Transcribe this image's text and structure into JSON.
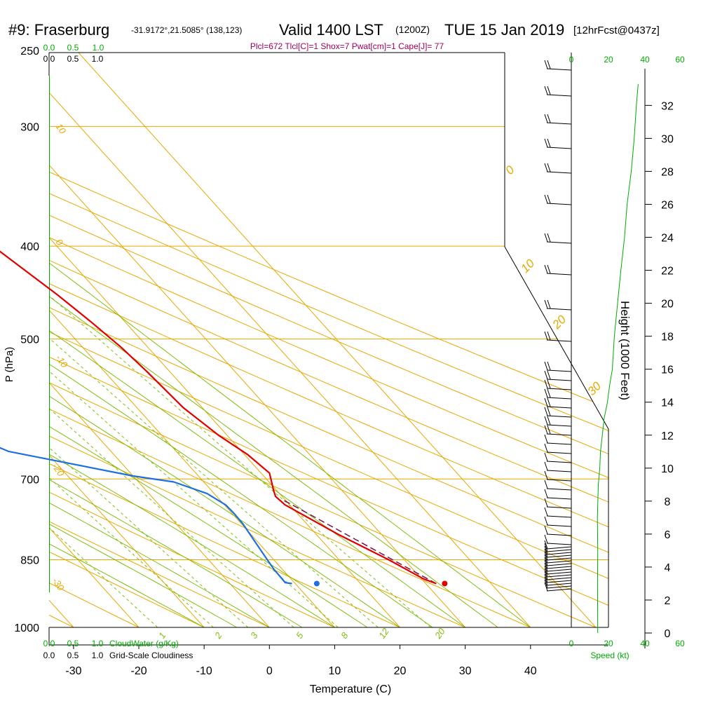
{
  "header": {
    "station": "#9: Fraserburg",
    "coords": "-31.9172°,21.5085° (138,123)",
    "valid": "Valid 1400 LST",
    "zulu": "(1200Z)",
    "date": "TUE 15 Jan 2019",
    "forecast": "[12hrFcst@0437z]",
    "indices": "Plcl=672 Tlcl[C]=1 Shox=7 Pwat[cm]=1 Cape[J]= 77"
  },
  "colors": {
    "isotherm": "#e8a800",
    "dry_adiabat": "#e8a800",
    "moist_adiabat": "#7fbf10",
    "mixing_ratio": "#7fbf10",
    "temperature": "#e00000",
    "dewpoint": "#1f6fe0",
    "parcel": "#7a1050",
    "indices": "#a0005a",
    "green_text": "#00aa00"
  },
  "left_scales": {
    "cloudwater_ticks": [
      "0.0",
      "0.5",
      "1.0"
    ],
    "cloudiness_ticks": [
      "0.0",
      "0.5",
      "1.0"
    ],
    "cloudwater_label": "CloudWater (g/Kg)",
    "cloudiness_label": "Grid-Scale Cloudiness"
  },
  "isotherm_labels": [
    "10",
    "0",
    "-10",
    "-20",
    "-30"
  ],
  "adiabat_labels": [
    "0",
    "10",
    "20",
    "30"
  ],
  "mixing_ratio_labels": [
    "1",
    "2",
    "3",
    "5",
    "8",
    "12",
    "20"
  ],
  "speed_axis": {
    "ticks": [
      "0",
      "20",
      "40",
      "60"
    ],
    "label": "Speed (kt)"
  },
  "chart_data": {
    "type": "line",
    "title": "#9: Fraserburg",
    "xlabel": "Temperature (C)",
    "ylabel": "P (hPa)",
    "y2label": "Height (1000 Feet)",
    "xlim": [
      -35,
      35
    ],
    "ylim": [
      1000,
      250
    ],
    "x_ticks": [
      -30,
      -20,
      -10,
      0,
      10,
      20,
      30,
      40
    ],
    "y_ticks": [
      250,
      300,
      400,
      500,
      700,
      850,
      1000
    ],
    "height_ticks": [
      0,
      2,
      4,
      6,
      8,
      10,
      12,
      14,
      16,
      18,
      20,
      22,
      24,
      26,
      28,
      30,
      32
    ],
    "series": [
      {
        "name": "temperature",
        "points": [
          [
            31.6,
            900
          ],
          [
            30.3,
            890
          ],
          [
            27.6,
            850
          ],
          [
            23.4,
            800
          ],
          [
            19.3,
            745
          ],
          [
            19.0,
            730
          ],
          [
            19.5,
            720
          ],
          [
            21.3,
            690
          ],
          [
            20.5,
            660
          ],
          [
            18.7,
            630
          ],
          [
            17.1,
            590
          ],
          [
            16.5,
            540
          ],
          [
            15.9,
            510
          ],
          [
            14.8,
            480
          ],
          [
            13.4,
            450
          ],
          [
            10.2,
            400
          ],
          [
            5.3,
            350
          ],
          [
            0.8,
            300
          ],
          [
            0.2,
            265
          ]
        ]
      },
      {
        "name": "dewpoint",
        "points": [
          [
            9.5,
            900
          ],
          [
            8.6,
            898
          ],
          [
            8.7,
            870
          ],
          [
            9.0,
            850
          ],
          [
            10.2,
            780
          ],
          [
            10.3,
            760
          ],
          [
            10.2,
            745
          ],
          [
            8.9,
            725
          ],
          [
            5.4,
            705
          ],
          [
            0.0,
            695
          ],
          [
            -15.7,
            655
          ],
          [
            -18.6,
            635
          ],
          [
            -19.3,
            615
          ],
          [
            -21.0,
            582
          ],
          [
            -26.5,
            555
          ],
          [
            -28.7,
            535
          ],
          [
            -25.5,
            525
          ],
          [
            -15.9,
            500
          ],
          [
            -7.1,
            470
          ],
          [
            -0.4,
            445
          ],
          [
            3.7,
            400
          ],
          [
            3.6,
            370
          ],
          [
            3.3,
            362
          ],
          [
            0.3,
            345
          ],
          [
            -9.8,
            310
          ],
          [
            -12.3,
            290
          ],
          [
            -12.4,
            280
          ],
          [
            -12.5,
            260
          ]
        ]
      },
      {
        "name": "parcel",
        "points": [
          [
            31.6,
            900
          ],
          [
            19.6,
            735
          ]
        ]
      }
    ],
    "surface_dewpoint": {
      "x": 13.3,
      "p": 900
    },
    "surface_temperature": {
      "x": 32.9,
      "p": 900
    },
    "wind_speed_profile_kt": [
      [
        14.5,
        0
      ],
      [
        14.4,
        3
      ],
      [
        14.5,
        5
      ],
      [
        14.3,
        7
      ],
      [
        14.8,
        9
      ],
      [
        15.6,
        10
      ],
      [
        16,
        11
      ],
      [
        17,
        12
      ],
      [
        18,
        13
      ],
      [
        19.8,
        14
      ],
      [
        21,
        15
      ],
      [
        22.5,
        16
      ],
      [
        23.6,
        18
      ],
      [
        25.4,
        20
      ],
      [
        27.2,
        22
      ],
      [
        29.2,
        24
      ],
      [
        30.6,
        26
      ],
      [
        32.9,
        28
      ],
      [
        34.5,
        30
      ],
      [
        35.7,
        32
      ],
      [
        36.7,
        33.3
      ]
    ]
  }
}
